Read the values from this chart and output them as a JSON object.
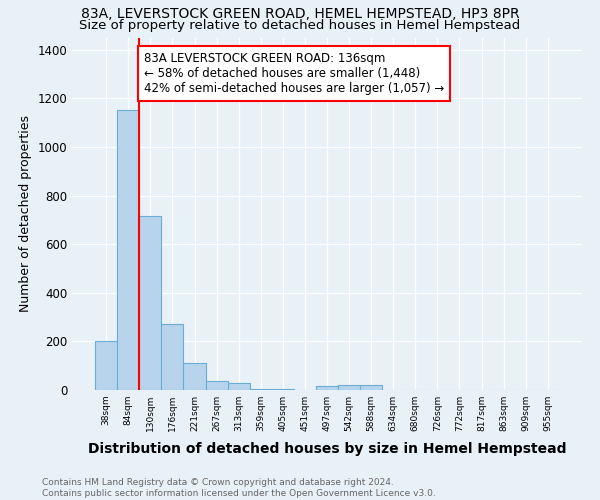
{
  "title1": "83A, LEVERSTOCK GREEN ROAD, HEMEL HEMPSTEAD, HP3 8PR",
  "title2": "Size of property relative to detached houses in Hemel Hempstead",
  "xlabel": "Distribution of detached houses by size in Hemel Hempstead",
  "ylabel": "Number of detached properties",
  "bins": [
    "38sqm",
    "84sqm",
    "130sqm",
    "176sqm",
    "221sqm",
    "267sqm",
    "313sqm",
    "359sqm",
    "405sqm",
    "451sqm",
    "497sqm",
    "542sqm",
    "588sqm",
    "634sqm",
    "680sqm",
    "726sqm",
    "772sqm",
    "817sqm",
    "863sqm",
    "909sqm",
    "955sqm"
  ],
  "values": [
    200,
    1150,
    715,
    270,
    110,
    35,
    30,
    5,
    5,
    0,
    15,
    20,
    20,
    0,
    0,
    0,
    0,
    0,
    0,
    0,
    0
  ],
  "bar_color": "#b8d4ec",
  "bar_edge_color": "#6aaed6",
  "red_line_x": 1.5,
  "annotation_text": "83A LEVERSTOCK GREEN ROAD: 136sqm\n← 58% of detached houses are smaller (1,448)\n42% of semi-detached houses are larger (1,057) →",
  "footnote": "Contains HM Land Registry data © Crown copyright and database right 2024.\nContains public sector information licensed under the Open Government Licence v3.0.",
  "ylim": [
    0,
    1450
  ],
  "yticks": [
    0,
    200,
    400,
    600,
    800,
    1000,
    1200,
    1400
  ],
  "background_color": "#e8f0f8",
  "plot_bg_color": "#e8f0f8",
  "grid_color": "#ffffff",
  "title1_fontsize": 10,
  "title2_fontsize": 9.5,
  "xlabel_fontsize": 10,
  "ylabel_fontsize": 9,
  "annot_fontsize": 8.5
}
